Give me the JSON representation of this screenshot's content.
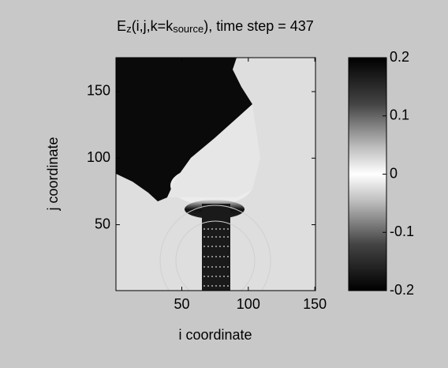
{
  "chart_data": {
    "type": "image",
    "title_parts": [
      {
        "text": "E"
      },
      {
        "text": "z",
        "sub": true
      },
      {
        "text": "(i,j,k=k"
      },
      {
        "text": "source",
        "sub": true
      },
      {
        "text": "), time step = 437"
      }
    ],
    "xlabel": "i coordinate",
    "ylabel": "j coordinate",
    "xlim": [
      0.5,
      150.5
    ],
    "xticks": [
      50,
      100,
      150
    ],
    "ylim": [
      0.5,
      175.5
    ],
    "yticks": [
      50,
      100,
      150
    ],
    "clim": [
      -0.2,
      0.2
    ],
    "cticks": [
      -0.2,
      -0.1,
      0,
      0.1,
      0.2
    ]
  }
}
